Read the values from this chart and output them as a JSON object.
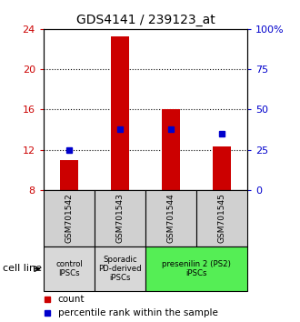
{
  "title": "GDS4141 / 239123_at",
  "samples": [
    "GSM701542",
    "GSM701543",
    "GSM701544",
    "GSM701545"
  ],
  "count_values": [
    11.0,
    23.3,
    16.0,
    12.3
  ],
  "count_base": 8.0,
  "percentile_values": [
    25.0,
    37.5,
    37.5,
    35.0
  ],
  "ylim_left": [
    8,
    24
  ],
  "ylim_right": [
    0,
    100
  ],
  "yticks_left": [
    8,
    12,
    16,
    20,
    24
  ],
  "yticks_right": [
    0,
    25,
    50,
    75,
    100
  ],
  "ytick_labels_right": [
    "0",
    "25",
    "50",
    "75",
    "100%"
  ],
  "grid_values": [
    12,
    16,
    20
  ],
  "bar_color": "#cc0000",
  "dot_color": "#0000cc",
  "bar_width": 0.35,
  "cell_line_label": "cell line",
  "legend_count_label": "count",
  "legend_pct_label": "percentile rank within the sample",
  "tick_color_left": "#cc0000",
  "tick_color_right": "#0000cc",
  "group_info": [
    {
      "label": "control\nIPSCs",
      "xmin": -0.5,
      "xmax": 0.5,
      "color": "#d8d8d8"
    },
    {
      "label": "Sporadic\nPD-derived\niPSCs",
      "xmin": 0.5,
      "xmax": 1.5,
      "color": "#d8d8d8"
    },
    {
      "label": "presenilin 2 (PS2)\niPSCs",
      "xmin": 1.5,
      "xmax": 3.5,
      "color": "#55ee55"
    }
  ]
}
